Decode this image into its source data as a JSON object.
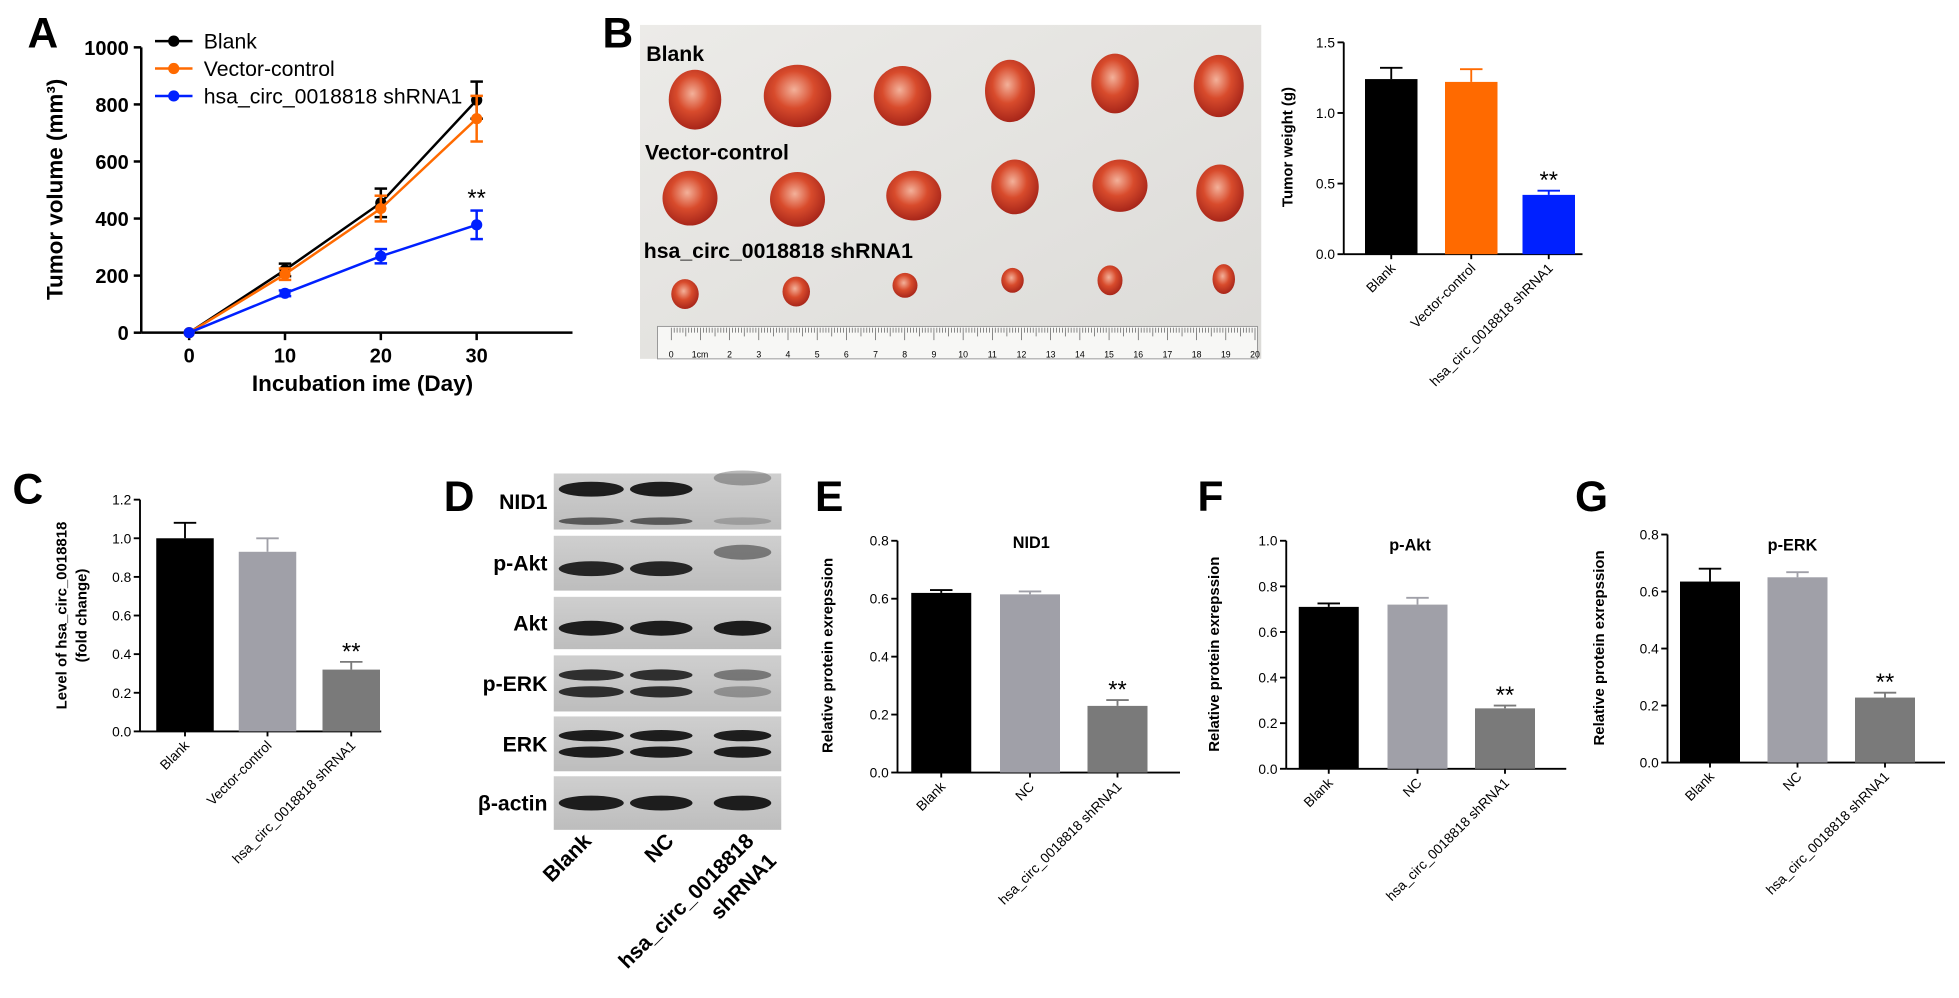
{
  "panels": {
    "A": "A",
    "B": "B",
    "C": "C",
    "D": "D",
    "E": "E",
    "F": "F",
    "G": "G"
  },
  "colors": {
    "black": "#000000",
    "orange": "#ff6a00",
    "blue": "#0020ff",
    "gray": "#a0a0a8",
    "dark_gray": "#7a7a7a"
  },
  "photo": {
    "rows": [
      "Blank",
      "Vector-control",
      "hsa_circ_0018818 shRNA1"
    ],
    "ruler_unit": "1cm",
    "ruler_ticks": [
      "0",
      "2",
      "3",
      "4",
      "5",
      "6",
      "7",
      "8",
      "9",
      "10",
      "11",
      "12",
      "13",
      "14",
      "15",
      "16",
      "17",
      "18",
      "19",
      "20"
    ]
  },
  "blot": {
    "rows": [
      "NID1",
      "p-Akt",
      "Akt",
      "p-ERK",
      "ERK",
      "β-actin"
    ],
    "lanes": [
      "Blank",
      "NC",
      "hsa_circ_0018818\nshRNA1"
    ]
  },
  "chart_data": [
    {
      "id": "A",
      "type": "line",
      "xlabel": "Incubation ime (Day)",
      "ylabel": "Tumor volume (mm³)",
      "x": [
        0,
        10,
        20,
        30
      ],
      "xlim": [
        -5,
        40
      ],
      "ylim": [
        0,
        1000
      ],
      "xticks": [
        0,
        10,
        20,
        30
      ],
      "yticks": [
        0,
        200,
        400,
        600,
        800,
        1000
      ],
      "legend": "top-left",
      "series": [
        {
          "name": "Blank",
          "values": [
            0,
            220,
            455,
            815
          ],
          "errors": [
            0,
            22,
            50,
            65
          ]
        },
        {
          "name": "Vector-control",
          "values": [
            0,
            205,
            435,
            750
          ],
          "errors": [
            0,
            20,
            45,
            80
          ]
        },
        {
          "name": "hsa_circ_0018818 shRNA1",
          "values": [
            0,
            138,
            268,
            378
          ],
          "errors": [
            0,
            10,
            25,
            50
          ]
        }
      ],
      "annotations": [
        {
          "text": "**",
          "x": 30,
          "y": 470
        }
      ]
    },
    {
      "id": "B",
      "type": "bar",
      "ylabel": "Tumor weight (g)",
      "categories": [
        "Blank",
        "Vector-control",
        "hsa_circ_0018818 shRNA1"
      ],
      "values": [
        1.24,
        1.22,
        0.42
      ],
      "errors": [
        0.08,
        0.09,
        0.03
      ],
      "ylim": [
        0,
        1.5
      ],
      "yticks": [
        "0.0",
        "0.5",
        "1.0",
        "1.5"
      ],
      "annotations": [
        "",
        "",
        "**"
      ]
    },
    {
      "id": "C",
      "type": "bar",
      "ylabel": "Level of hsa_circ_0018818\n(fold change)",
      "categories": [
        "Blank",
        "Vector-control",
        "hsa_circ_0018818 shRNA1"
      ],
      "values": [
        1.0,
        0.93,
        0.32
      ],
      "errors": [
        0.08,
        0.07,
        0.04
      ],
      "ylim": [
        0,
        1.2
      ],
      "yticks": [
        "0.0",
        "0.2",
        "0.4",
        "0.6",
        "0.8",
        "1.0",
        "1.2"
      ],
      "annotations": [
        "",
        "",
        "**"
      ]
    },
    {
      "id": "E",
      "type": "bar",
      "title": "NID1",
      "ylabel": "Relative protein exrepssion",
      "categories": [
        "Blank",
        "NC",
        "hsa_circ_0018818 shRNA1"
      ],
      "values": [
        0.62,
        0.615,
        0.23
      ],
      "errors": [
        0.01,
        0.01,
        0.02
      ],
      "ylim": [
        0,
        0.8
      ],
      "yticks": [
        "0.0",
        "0.2",
        "0.4",
        "0.6",
        "0.8"
      ],
      "annotations": [
        "",
        "",
        "**"
      ]
    },
    {
      "id": "F",
      "type": "bar",
      "title": "p-Akt",
      "ylabel": "Relative protein exrepssion",
      "categories": [
        "Blank",
        "NC",
        "hsa_circ_0018818 shRNA1"
      ],
      "values": [
        0.71,
        0.72,
        0.265
      ],
      "errors": [
        0.015,
        0.03,
        0.012
      ],
      "ylim": [
        0,
        1.0
      ],
      "yticks": [
        "0.0",
        "0.2",
        "0.4",
        "0.6",
        "0.8",
        "1.0"
      ],
      "annotations": [
        "",
        "",
        "**"
      ]
    },
    {
      "id": "G",
      "type": "bar",
      "title": "p-ERK",
      "ylabel": "Relative protein exrepssion",
      "categories": [
        "Blank",
        "NC",
        "hsa_circ_0018818 shRNA1"
      ],
      "values": [
        0.635,
        0.65,
        0.228
      ],
      "errors": [
        0.045,
        0.018,
        0.017
      ],
      "ylim": [
        0,
        0.8
      ],
      "yticks": [
        "0.0",
        "0.2",
        "0.4",
        "0.6",
        "0.8"
      ],
      "annotations": [
        "",
        "",
        "**"
      ]
    }
  ]
}
